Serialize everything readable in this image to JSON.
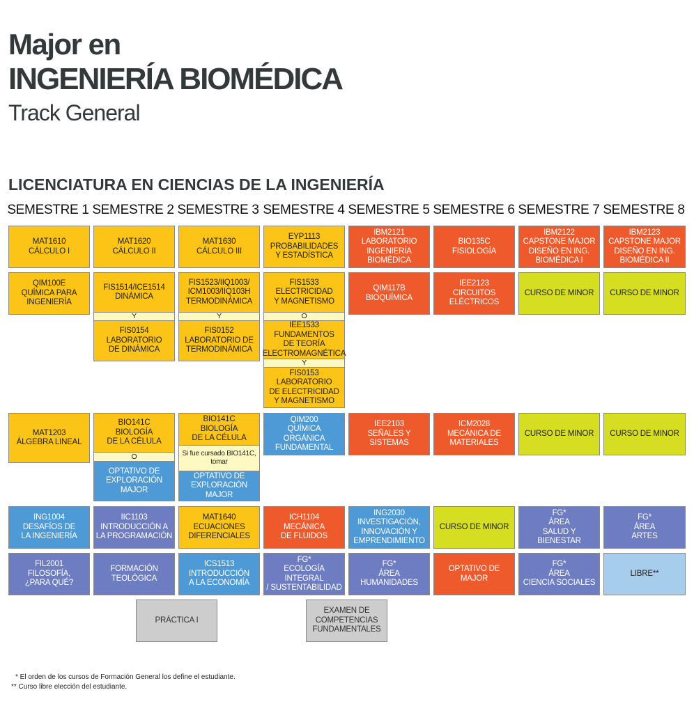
{
  "header": {
    "major": "Major en",
    "title": "INGENIERÍA BIOMÉDICA",
    "track": "Track General",
    "section": "LICENCIATURA EN CIENCIAS DE LA INGENIERÍA"
  },
  "semesters": [
    "SEMESTRE 1",
    "SEMESTRE 2",
    "SEMESTRE 3",
    "SEMESTRE 4",
    "SEMESTRE 5",
    "SEMESTRE 6",
    "SEMESTRE 7",
    "SEMESTRE 8"
  ],
  "colors": {
    "basic": "#fcc417",
    "major": "#ee5a2c",
    "minor": "#d6de21",
    "blue": "#4e9ad6",
    "general": "#6e7cc2",
    "free": "#a7cdec",
    "gray": "#cdcdcd",
    "connector": "#fef8c2"
  },
  "courses": {
    "s1": {
      "r1": "MAT1610\nCÁLCULO I",
      "r2": "QIM100E\nQUÍMICA PARA\nINGENIERÍA",
      "r3": "MAT1203\nÁLGEBRA LINEAL",
      "r4": "ING1004\nDESAFÍOS DE\nLA INGENIERÍA",
      "r5": "FIL2001\nFILOSOFÍA,\n¿PARA QUÉ?"
    },
    "s2": {
      "r1": "MAT1620\nCÁLCULO II",
      "r2a": "FIS1514/ICE1514\nDINÁMICA",
      "r2sep": "Y",
      "r2b": "FIS0154\nLABORATORIO\nDE DINÁMICA",
      "r3a": "BIO141C\nBIOLOGÍA\nDE LA CÉLULA",
      "r3sep": "O",
      "r3b": "OPTATIVO DE\nEXPLORACIÓN\nMAJOR",
      "r4": "IIC1103\nINTRODUCCIÓN A\nLA PROGRAMACIÓN",
      "r5": "FORMACIÓN\nTEOLÓGICA",
      "practica": "PRÁCTICA I"
    },
    "s3": {
      "r1": "MAT1630\nCÁLCULO III",
      "r2a": "FIS1523/IIQ1003/\nICM1003/IIQ103H\nTERMODINÁMICA",
      "r2sep": "Y",
      "r2b": "FIS0152\nLABORATORIO DE\nTERMODINÁMICA",
      "r3a": "BIO141C\nBIOLOGÍA\nDE LA CÉLULA",
      "r3sep": "Si fue cursado BIO141C,\ntomar",
      "r3b": "OPTATIVO DE\nEXPLORACIÓN\nMAJOR",
      "r4": "MAT1640\nECUACIONES\nDIFERENCIALES",
      "r5": "ICS1513\nINTRODUCCIÓN\nA LA ECONOMÍA"
    },
    "s4": {
      "r1": "EYP1113\nPROBABILIDADES\nY ESTADÍSTICA",
      "r2a": "FIS1533\nELECTRICIDAD\nY MAGNETISMO",
      "r2sep1": "O",
      "r2b": "IEE1533\nFUNDAMENTOS\nDE TEORÍA\nELECTROMAGNÉTICA",
      "r2sep2": "Y",
      "r2c": "FIS0153\nLABORATORIO\nDE ELECTRICIDAD\nY MAGNETISMO",
      "r3": "QIM200\nQUÍMICA\nORGÁNICA\nFUNDAMENTAL",
      "r4": "ICH1104\nMECÁNICA\nDE FLUIDOS",
      "r5": "FG*\nECOLOGÍA INTEGRAL\n/ SUSTENTABILIDAD",
      "examen": "EXAMEN DE\nCOMPETENCIAS\nFUNDAMENTALES"
    },
    "s5": {
      "r1": "IBM2121\nLABORATORIO\nINGENIERÍA\nBIOMÉDICA",
      "r2": "QIM117B\nBIOQUÍMICA",
      "r3": "IEE2103\nSEÑALES Y\nSISTEMAS",
      "r4": "ING2030\nINVESTIGACIÓN,\nINNOVACIÓN Y\nEMPRENDIMIENTO",
      "r5": "FG*\nÁREA\nHUMANIDADES"
    },
    "s6": {
      "r1": "BIO135C\nFISIOLOGÍA",
      "r2": "IEE2123\nCIRCUITOS\nELÉCTRICOS",
      "r3": "ICM2028\nMECÁNICA DE\nMATERIALES",
      "r4": "CURSO DE MINOR",
      "r5": "OPTATIVO DE MAJOR"
    },
    "s7": {
      "r1": "IBM2122\nCAPSTONE MAJOR\nDISEÑO EN ING.\nBIOMÉDICA I",
      "r2": "CURSO DE MINOR",
      "r3": "CURSO DE MINOR",
      "r4": "FG*\nÁREA\nSALUD Y BIENESTAR",
      "r5": "FG*\nÁREA\nCIENCIA SOCIALES"
    },
    "s8": {
      "r1": "IBM2123\nCAPSTONE MAJOR\nDISEÑO EN ING.\nBIOMÉDICA II",
      "r2": "CURSO DE MINOR",
      "r3": "CURSO DE MINOR",
      "r4": "FG*\nÁREA\nARTES",
      "r5": "LIBRE**"
    }
  },
  "footnotes": {
    "f1": "* El orden de los cursos de Formación General los define el estudiante.",
    "f2": "** Curso libre elección del estudiante."
  }
}
